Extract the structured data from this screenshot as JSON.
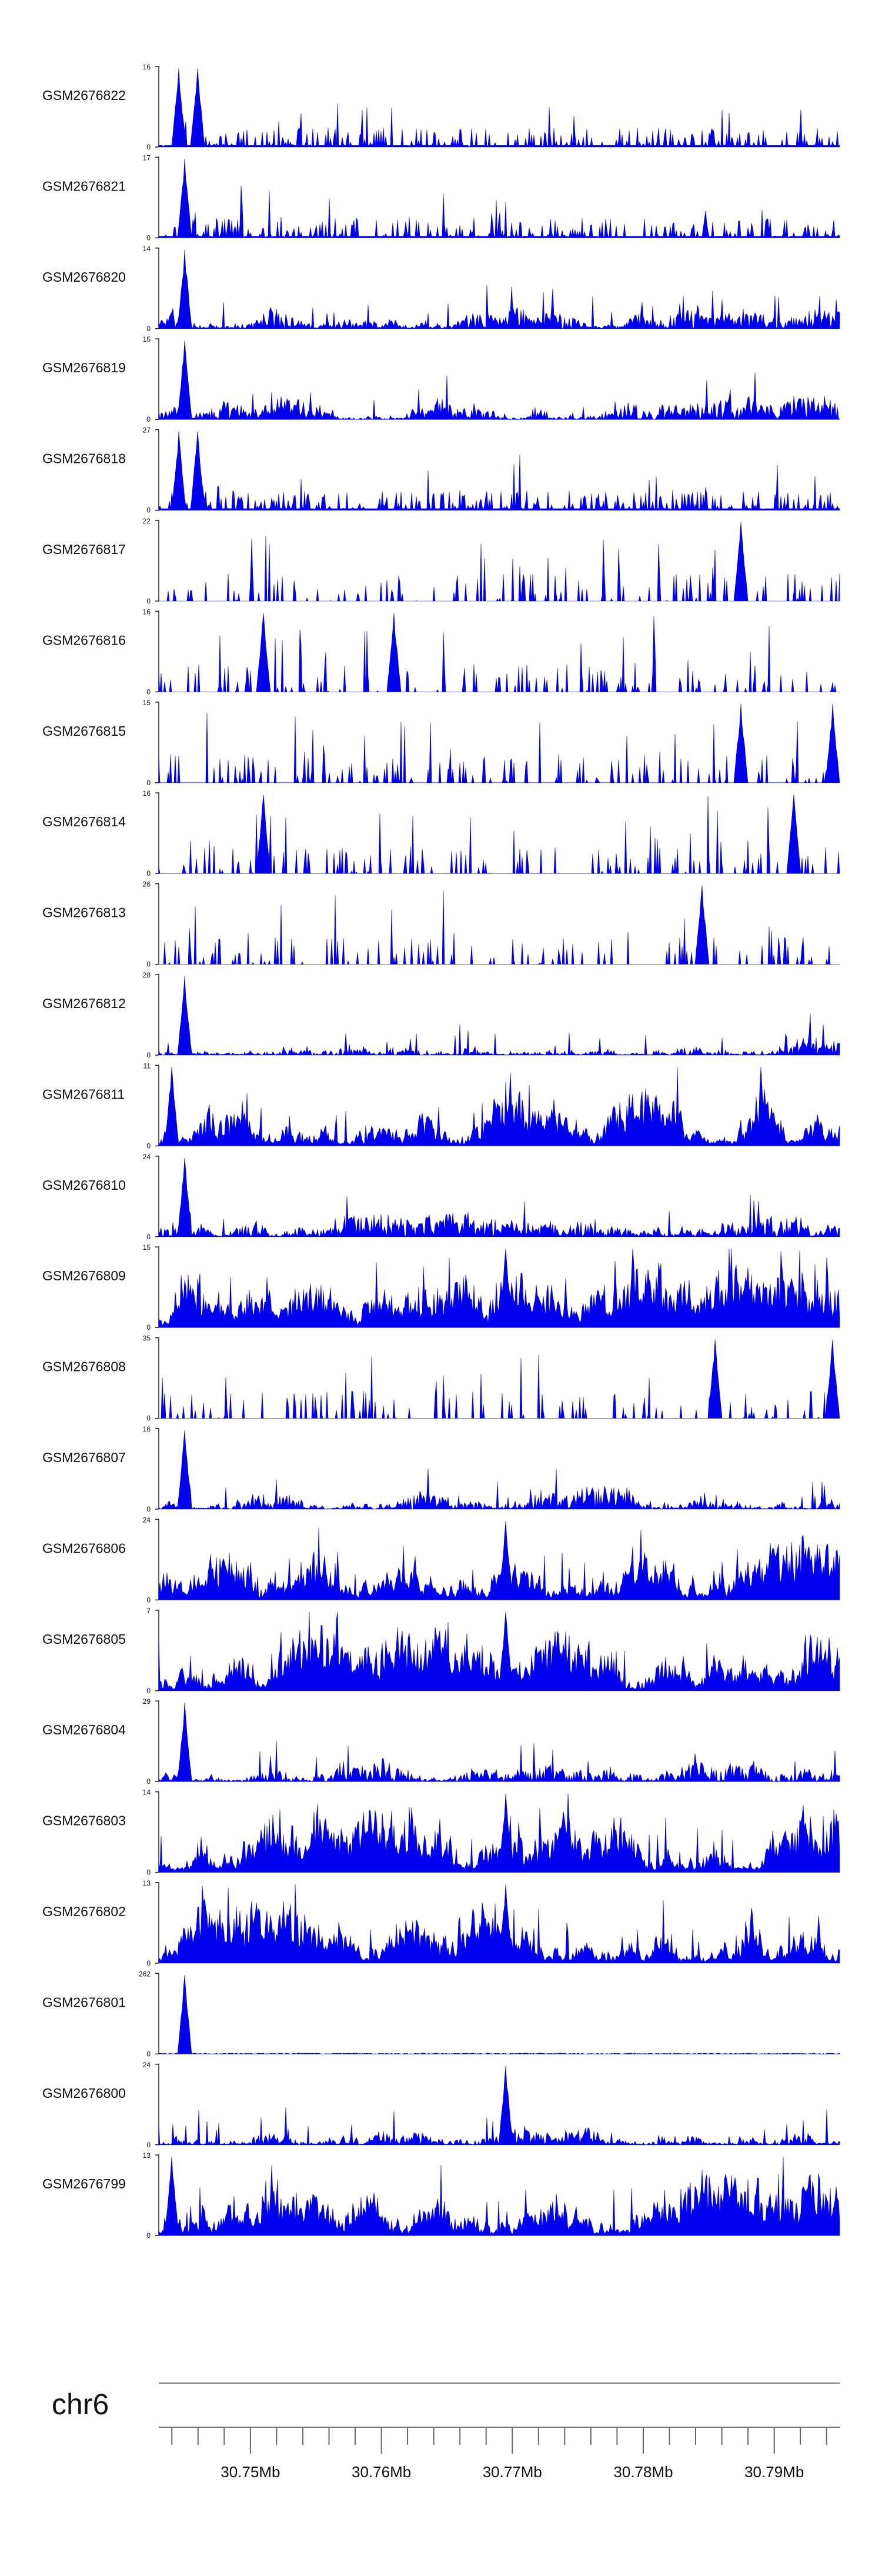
{
  "chart_data": {
    "type": "area",
    "chromosome": "chr6",
    "x_axis": {
      "range_mb": [
        30.743,
        30.795
      ],
      "tick_labels": [
        "30.75Mb",
        "30.76Mb",
        "30.77Mb",
        "30.78Mb",
        "30.79Mb"
      ],
      "tick_values_mb": [
        30.75,
        30.76,
        30.77,
        30.78,
        30.79
      ],
      "minor_tick_interval_mb": 0.002
    },
    "fill_color": "#0000ee",
    "tracks": [
      {
        "name": "GSM2676822",
        "ymax": 16,
        "ymin": 0,
        "peak_x_mb": [
          30.7445,
          30.746
        ],
        "shape": "sparse"
      },
      {
        "name": "GSM2676821",
        "ymax": 17,
        "ymin": 0,
        "peak_x_mb": [
          30.745
        ],
        "shape": "sparse"
      },
      {
        "name": "GSM2676820",
        "ymax": 14,
        "ymin": 0,
        "peak_x_mb": [
          30.745
        ],
        "shape": "dense"
      },
      {
        "name": "GSM2676819",
        "ymax": 15,
        "ymin": 0,
        "peak_x_mb": [
          30.745
        ],
        "shape": "dense"
      },
      {
        "name": "GSM2676818",
        "ymax": 27,
        "ymin": 0,
        "peak_x_mb": [
          30.7445,
          30.746
        ],
        "shape": "sparse"
      },
      {
        "name": "GSM2676817",
        "ymax": 22,
        "ymin": 0,
        "peak_x_mb": [
          30.7875
        ],
        "shape": "spiky"
      },
      {
        "name": "GSM2676816",
        "ymax": 16,
        "ymin": 0,
        "peak_x_mb": [
          30.751,
          30.761
        ],
        "shape": "spiky"
      },
      {
        "name": "GSM2676815",
        "ymax": 15,
        "ymin": 0,
        "peak_x_mb": [
          30.7875,
          30.7945
        ],
        "shape": "spiky"
      },
      {
        "name": "GSM2676814",
        "ymax": 16,
        "ymin": 0,
        "peak_x_mb": [
          30.751,
          30.7915
        ],
        "shape": "spiky"
      },
      {
        "name": "GSM2676813",
        "ymax": 26,
        "ymin": 0,
        "peak_x_mb": [
          30.7845
        ],
        "shape": "spiky"
      },
      {
        "name": "GSM2676812",
        "ymax": 28,
        "ymin": 0,
        "peak_x_mb": [
          30.745
        ],
        "shape": "dense"
      },
      {
        "name": "GSM2676811",
        "ymax": 11,
        "ymin": 0,
        "peak_x_mb": [
          30.744
        ],
        "shape": "busy"
      },
      {
        "name": "GSM2676810",
        "ymax": 24,
        "ymin": 0,
        "peak_x_mb": [
          30.745
        ],
        "shape": "dense"
      },
      {
        "name": "GSM2676809",
        "ymax": 15,
        "ymin": 0,
        "peak_x_mb": [
          30.7695
        ],
        "shape": "busy"
      },
      {
        "name": "GSM2676808",
        "ymax": 35,
        "ymin": 0,
        "peak_x_mb": [
          30.7855,
          30.7945
        ],
        "shape": "spiky"
      },
      {
        "name": "GSM2676807",
        "ymax": 16,
        "ymin": 0,
        "peak_x_mb": [
          30.745
        ],
        "shape": "dense"
      },
      {
        "name": "GSM2676806",
        "ymax": 24,
        "ymin": 0,
        "peak_x_mb": [
          30.7695
        ],
        "shape": "busy"
      },
      {
        "name": "GSM2676805",
        "ymax": 7,
        "ymin": 0,
        "peak_x_mb": [
          30.7695
        ],
        "shape": "busy"
      },
      {
        "name": "GSM2676804",
        "ymax": 29,
        "ymin": 0,
        "peak_x_mb": [
          30.745
        ],
        "shape": "dense"
      },
      {
        "name": "GSM2676803",
        "ymax": 14,
        "ymin": 0,
        "peak_x_mb": [
          30.7695
        ],
        "shape": "busy"
      },
      {
        "name": "GSM2676802",
        "ymax": 13,
        "ymin": 0,
        "peak_x_mb": [
          30.7695
        ],
        "shape": "busy"
      },
      {
        "name": "GSM2676801",
        "ymax": 262,
        "ymin": 0,
        "peak_x_mb": [
          30.745
        ],
        "shape": "single"
      },
      {
        "name": "GSM2676800",
        "ymax": 24,
        "ymin": 0,
        "peak_x_mb": [
          30.7695
        ],
        "shape": "dense"
      },
      {
        "name": "GSM2676799",
        "ymax": 13,
        "ymin": 0,
        "peak_x_mb": [
          30.744
        ],
        "shape": "busy"
      }
    ]
  }
}
